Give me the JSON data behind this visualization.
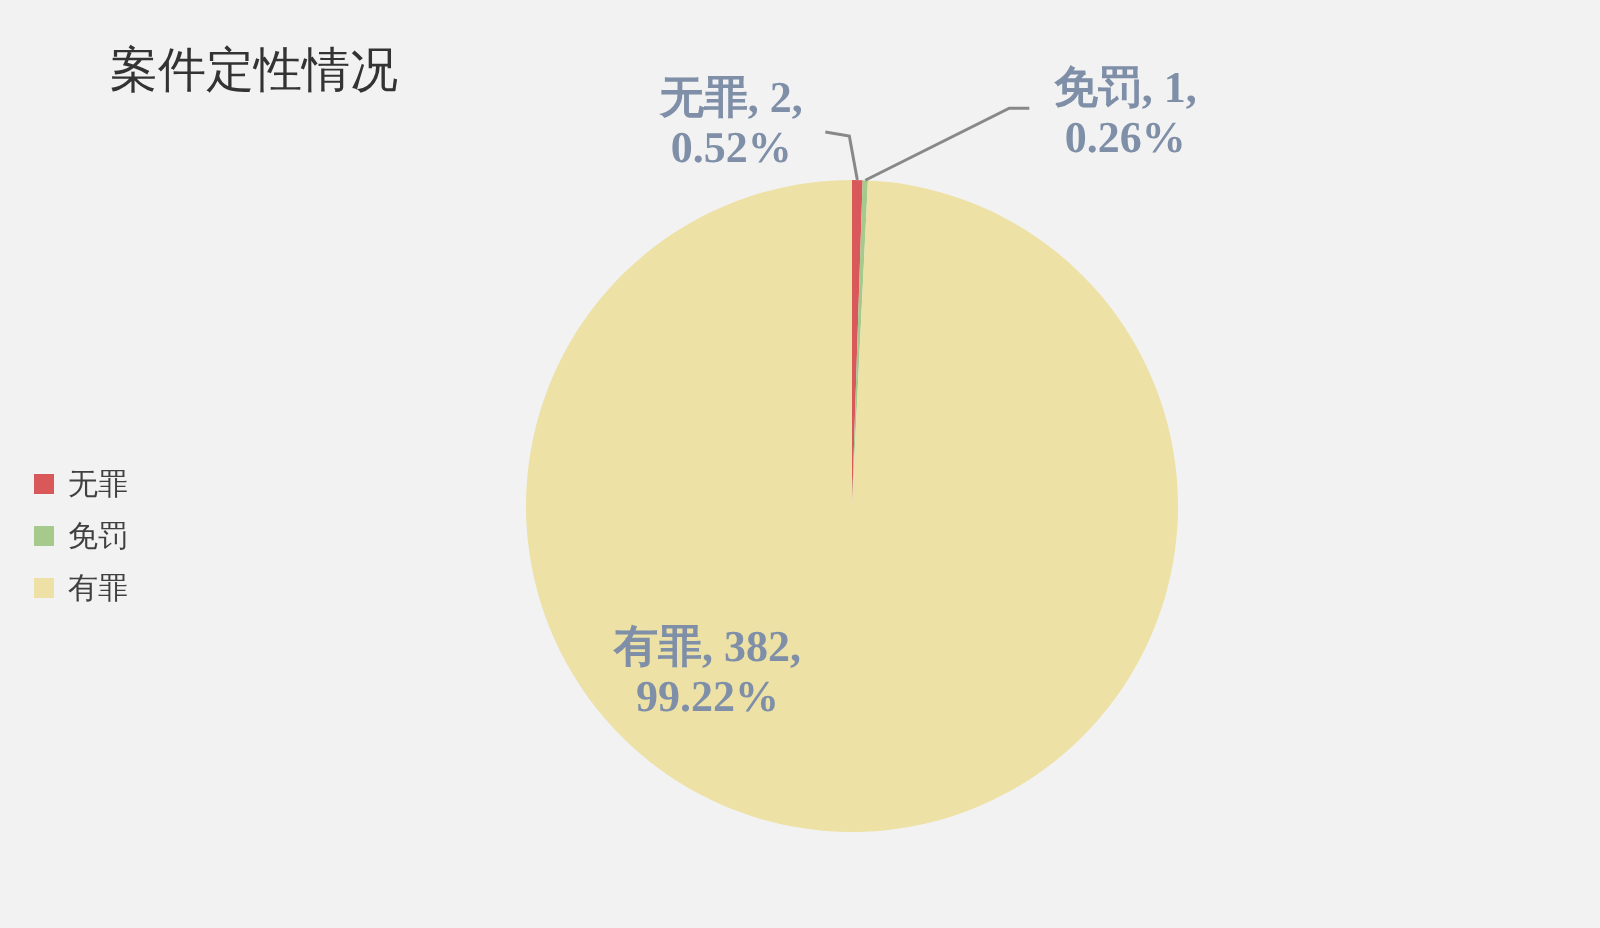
{
  "chart_data": {
    "type": "pie",
    "title": "案件定性情况",
    "categories": [
      "无罪",
      "免罚",
      "有罪"
    ],
    "values": [
      2,
      1,
      382
    ],
    "colors": [
      "#d9585a",
      "#a6c98c",
      "#ede1a6"
    ],
    "value_labels": [
      "无罪, 2, 0.52%",
      "免罚, 1, 0.26%",
      "有罪, 382, 99.22%"
    ],
    "legend": "left"
  }
}
